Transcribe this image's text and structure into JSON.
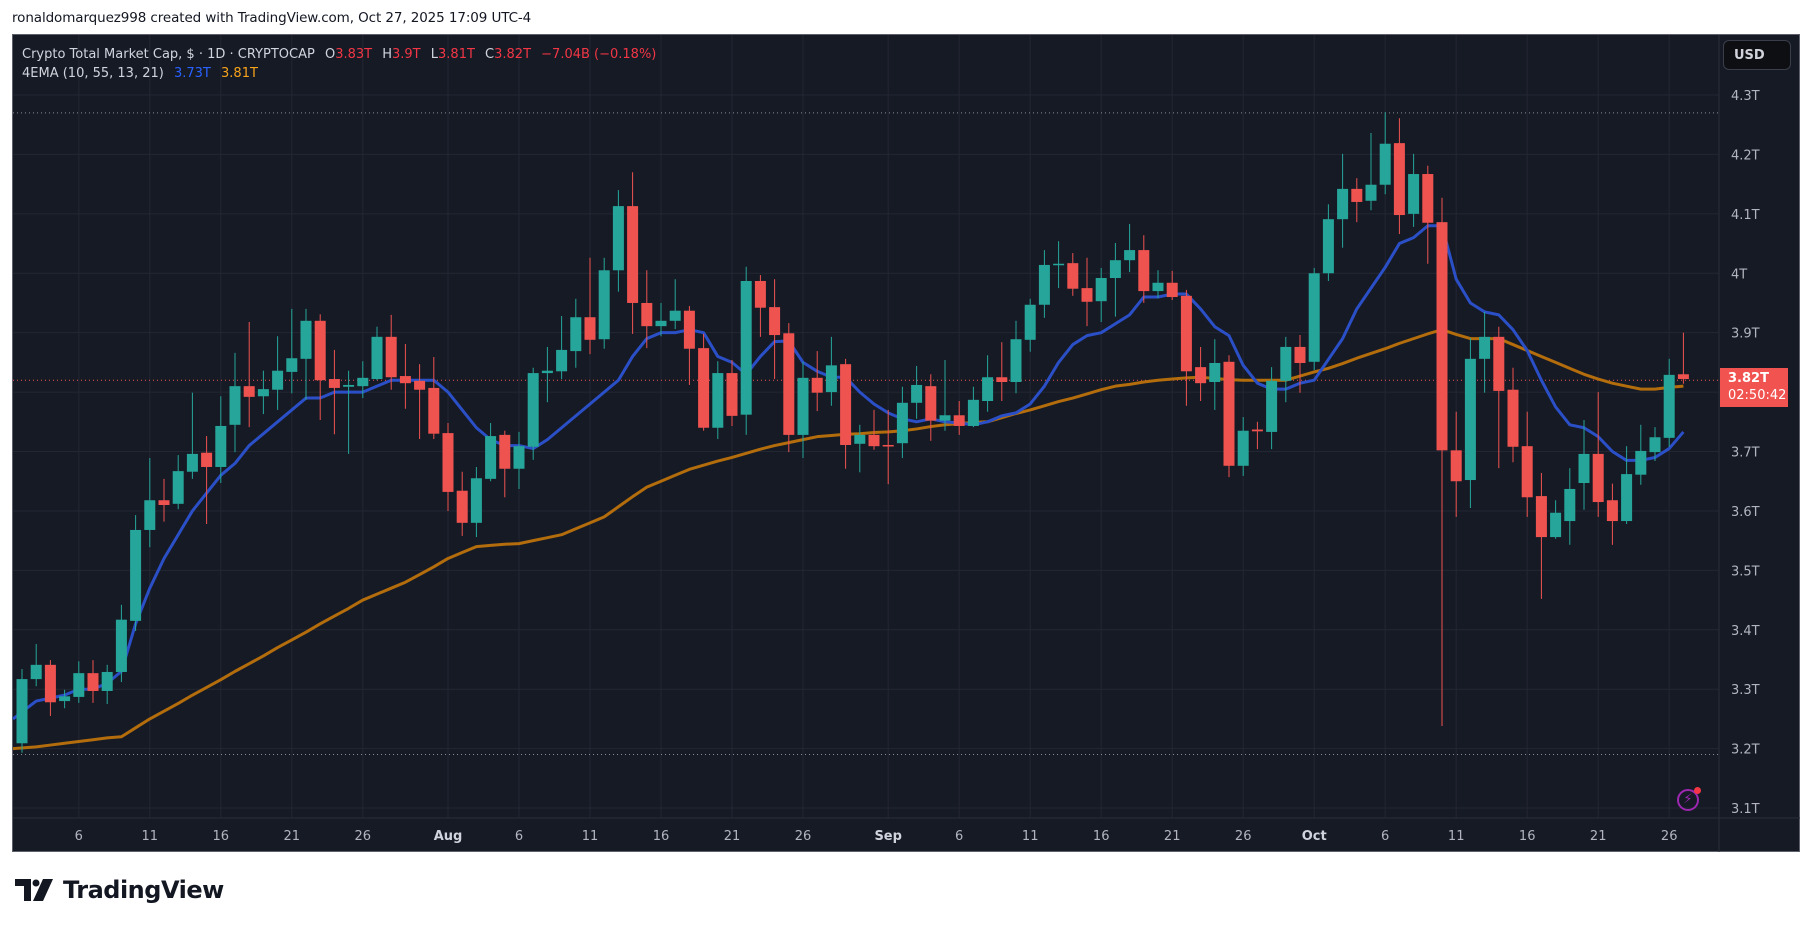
{
  "credit": "ronaldomarquez998 created with TradingView.com, Oct 27, 2025 17:09 UTC-4",
  "legend": {
    "title": "Crypto Total Market Cap, $ · 1D · CRYPTOCAP",
    "o_label": "O",
    "o_value": "3.83T",
    "h_label": "H",
    "h_value": "3.9T",
    "l_label": "L",
    "l_value": "3.81T",
    "c_label": "C",
    "c_value": "3.82T",
    "change": "−7.04B (−0.18%)",
    "indicator": "4EMA (10, 55, 13, 21)",
    "ema_fast_value": "3.73T",
    "ema_slow_value": "3.81T"
  },
  "currency_button": "USD",
  "last_price": {
    "value": "3.82T",
    "countdown": "02:50:42"
  },
  "logo_text": "TradingView",
  "icons": {
    "alert": "lightning-alert-icon",
    "logo": "tradingview-logo-icon"
  },
  "colors": {
    "background": "#161a25",
    "grid": "#232733",
    "up": "#26a69a",
    "down": "#ef5350",
    "ema_fast": "#2a4fc6",
    "ema_slow": "#b36d0c",
    "price_line": "#f05350",
    "axis_text": "#b2b5be"
  },
  "chart_data": {
    "type": "candlestick",
    "title": "Crypto Total Market Cap, $ · 1D · CRYPTOCAP",
    "xlabel": "",
    "ylabel": "USD",
    "ylim": [
      3.08,
      4.36
    ],
    "y_ticks": [
      "4.3T",
      "4.2T",
      "4.1T",
      "4T",
      "3.9T",
      "3.8T",
      "3.7T",
      "3.6T",
      "3.5T",
      "3.4T",
      "3.3T",
      "3.2T",
      "3.1T"
    ],
    "y_tick_values": [
      4.3,
      4.2,
      4.1,
      4.0,
      3.9,
      3.8,
      3.7,
      3.6,
      3.5,
      3.4,
      3.3,
      3.2,
      3.1
    ],
    "x_ticks": [
      {
        "label": "6",
        "day": 4
      },
      {
        "label": "11",
        "day": 9
      },
      {
        "label": "16",
        "day": 14
      },
      {
        "label": "21",
        "day": 19
      },
      {
        "label": "26",
        "day": 24
      },
      {
        "label": "Aug",
        "day": 30,
        "bold": true
      },
      {
        "label": "6",
        "day": 35
      },
      {
        "label": "11",
        "day": 40
      },
      {
        "label": "16",
        "day": 45
      },
      {
        "label": "21",
        "day": 50
      },
      {
        "label": "26",
        "day": 55
      },
      {
        "label": "Sep",
        "day": 61,
        "bold": true
      },
      {
        "label": "6",
        "day": 66
      },
      {
        "label": "11",
        "day": 71
      },
      {
        "label": "16",
        "day": 76
      },
      {
        "label": "21",
        "day": 81
      },
      {
        "label": "26",
        "day": 86
      },
      {
        "label": "Oct",
        "day": 91,
        "bold": true
      },
      {
        "label": "6",
        "day": 96
      },
      {
        "label": "11",
        "day": 101
      },
      {
        "label": "16",
        "day": 106
      },
      {
        "label": "21",
        "day": 111
      },
      {
        "label": "26",
        "day": 116
      }
    ],
    "start_date": "Jul 2",
    "end_date": "Oct 27",
    "hlines": {
      "high_dotted": 4.27,
      "low_dotted": 3.19,
      "last_price": 3.82
    },
    "ohlc": [
      [
        3.209,
        3.334,
        3.193,
        3.317
      ],
      [
        3.317,
        3.376,
        3.305,
        3.341
      ],
      [
        3.341,
        3.349,
        3.255,
        3.278
      ],
      [
        3.28,
        3.299,
        3.268,
        3.288
      ],
      [
        3.287,
        3.347,
        3.277,
        3.327
      ],
      [
        3.327,
        3.349,
        3.277,
        3.297
      ],
      [
        3.297,
        3.341,
        3.275,
        3.329
      ],
      [
        3.329,
        3.442,
        3.312,
        3.417
      ],
      [
        3.415,
        3.593,
        3.398,
        3.568
      ],
      [
        3.568,
        3.689,
        3.539,
        3.618
      ],
      [
        3.618,
        3.654,
        3.582,
        3.61
      ],
      [
        3.612,
        3.694,
        3.603,
        3.667
      ],
      [
        3.666,
        3.799,
        3.654,
        3.696
      ],
      [
        3.698,
        3.726,
        3.578,
        3.674
      ],
      [
        3.674,
        3.793,
        3.647,
        3.743
      ],
      [
        3.745,
        3.866,
        3.699,
        3.81
      ],
      [
        3.81,
        3.918,
        3.741,
        3.792
      ],
      [
        3.793,
        3.836,
        3.763,
        3.805
      ],
      [
        3.804,
        3.894,
        3.77,
        3.836
      ],
      [
        3.834,
        3.94,
        3.798,
        3.857
      ],
      [
        3.856,
        3.94,
        3.787,
        3.92
      ],
      [
        3.92,
        3.931,
        3.753,
        3.82
      ],
      [
        3.822,
        3.871,
        3.729,
        3.807
      ],
      [
        3.809,
        3.836,
        3.696,
        3.812
      ],
      [
        3.81,
        3.852,
        3.79,
        3.824
      ],
      [
        3.822,
        3.91,
        3.82,
        3.893
      ],
      [
        3.893,
        3.93,
        3.804,
        3.825
      ],
      [
        3.827,
        3.881,
        3.772,
        3.815
      ],
      [
        3.819,
        3.847,
        3.721,
        3.804
      ],
      [
        3.807,
        3.859,
        3.721,
        3.73
      ],
      [
        3.731,
        3.748,
        3.6,
        3.632
      ],
      [
        3.634,
        3.666,
        3.558,
        3.58
      ],
      [
        3.58,
        3.674,
        3.556,
        3.655
      ],
      [
        3.654,
        3.748,
        3.65,
        3.726
      ],
      [
        3.728,
        3.735,
        3.623,
        3.671
      ],
      [
        3.671,
        3.733,
        3.637,
        3.709
      ],
      [
        3.708,
        3.841,
        3.686,
        3.832
      ],
      [
        3.832,
        3.876,
        3.783,
        3.836
      ],
      [
        3.835,
        3.928,
        3.822,
        3.871
      ],
      [
        3.869,
        3.957,
        3.841,
        3.926
      ],
      [
        3.926,
        4.026,
        3.864,
        3.888
      ],
      [
        3.889,
        4.026,
        3.873,
        4.005
      ],
      [
        4.005,
        4.14,
        3.969,
        4.113
      ],
      [
        4.113,
        4.17,
        3.898,
        3.95
      ],
      [
        3.95,
        4.005,
        3.874,
        3.911
      ],
      [
        3.911,
        3.95,
        3.894,
        3.92
      ],
      [
        3.92,
        3.99,
        3.906,
        3.937
      ],
      [
        3.937,
        3.945,
        3.812,
        3.873
      ],
      [
        3.874,
        3.898,
        3.735,
        3.74
      ],
      [
        3.74,
        3.852,
        3.721,
        3.832
      ],
      [
        3.832,
        3.854,
        3.743,
        3.76
      ],
      [
        3.762,
        4.011,
        3.728,
        3.987
      ],
      [
        3.987,
        3.997,
        3.893,
        3.942
      ],
      [
        3.943,
        3.99,
        3.822,
        3.896
      ],
      [
        3.899,
        3.916,
        3.699,
        3.728
      ],
      [
        3.728,
        3.851,
        3.689,
        3.824
      ],
      [
        3.824,
        3.869,
        3.768,
        3.799
      ],
      [
        3.8,
        3.893,
        3.777,
        3.845
      ],
      [
        3.847,
        3.856,
        3.671,
        3.711
      ],
      [
        3.713,
        3.745,
        3.665,
        3.728
      ],
      [
        3.728,
        3.77,
        3.703,
        3.709
      ],
      [
        3.711,
        3.77,
        3.645,
        3.71
      ],
      [
        3.714,
        3.809,
        3.689,
        3.782
      ],
      [
        3.782,
        3.844,
        3.755,
        3.812
      ],
      [
        3.81,
        3.83,
        3.718,
        3.752
      ],
      [
        3.752,
        3.854,
        3.735,
        3.761
      ],
      [
        3.761,
        3.785,
        3.728,
        3.743
      ],
      [
        3.743,
        3.809,
        3.741,
        3.787
      ],
      [
        3.785,
        3.862,
        3.767,
        3.825
      ],
      [
        3.825,
        3.884,
        3.785,
        3.817
      ],
      [
        3.817,
        3.92,
        3.798,
        3.889
      ],
      [
        3.888,
        3.957,
        3.868,
        3.947
      ],
      [
        3.947,
        4.039,
        3.925,
        4.014
      ],
      [
        4.014,
        4.054,
        3.975,
        4.016
      ],
      [
        4.017,
        4.034,
        3.962,
        3.974
      ],
      [
        3.975,
        4.026,
        3.911,
        3.952
      ],
      [
        3.953,
        4.009,
        3.918,
        3.992
      ],
      [
        3.992,
        4.051,
        3.927,
        4.022
      ],
      [
        4.022,
        4.083,
        4.002,
        4.039
      ],
      [
        4.039,
        4.064,
        3.95,
        3.97
      ],
      [
        3.97,
        4.005,
        3.958,
        3.984
      ],
      [
        3.984,
        4.004,
        3.955,
        3.96
      ],
      [
        3.962,
        3.972,
        3.777,
        3.835
      ],
      [
        3.842,
        3.876,
        3.785,
        3.815
      ],
      [
        3.817,
        3.889,
        3.77,
        3.849
      ],
      [
        3.851,
        3.862,
        3.657,
        3.676
      ],
      [
        3.676,
        3.758,
        3.659,
        3.735
      ],
      [
        3.737,
        3.75,
        3.704,
        3.734
      ],
      [
        3.733,
        3.842,
        3.704,
        3.819
      ],
      [
        3.819,
        3.893,
        3.783,
        3.876
      ],
      [
        3.876,
        3.896,
        3.799,
        3.849
      ],
      [
        3.851,
        4.009,
        3.837,
        4.0
      ],
      [
        4.0,
        4.116,
        3.987,
        4.091
      ],
      [
        4.091,
        4.201,
        4.043,
        4.142
      ],
      [
        4.142,
        4.16,
        4.086,
        4.12
      ],
      [
        4.122,
        4.236,
        4.106,
        4.149
      ],
      [
        4.149,
        4.271,
        4.133,
        4.218
      ],
      [
        4.219,
        4.261,
        4.066,
        4.098
      ],
      [
        4.1,
        4.201,
        4.078,
        4.167
      ],
      [
        4.167,
        4.181,
        4.016,
        4.085
      ],
      [
        4.086,
        4.127,
        3.238,
        3.702
      ],
      [
        3.702,
        3.767,
        3.59,
        3.65
      ],
      [
        3.652,
        3.891,
        3.605,
        3.856
      ],
      [
        3.856,
        3.935,
        3.799,
        3.893
      ],
      [
        3.893,
        3.91,
        3.672,
        3.802
      ],
      [
        3.804,
        3.841,
        3.682,
        3.708
      ],
      [
        3.709,
        3.767,
        3.59,
        3.623
      ],
      [
        3.625,
        3.664,
        3.452,
        3.556
      ],
      [
        3.556,
        3.618,
        3.553,
        3.597
      ],
      [
        3.583,
        3.672,
        3.543,
        3.637
      ],
      [
        3.647,
        3.753,
        3.602,
        3.696
      ],
      [
        3.696,
        3.8,
        3.59,
        3.615
      ],
      [
        3.618,
        3.646,
        3.543,
        3.583
      ],
      [
        3.583,
        3.709,
        3.578,
        3.662
      ],
      [
        3.661,
        3.745,
        3.644,
        3.701
      ],
      [
        3.699,
        3.741,
        3.684,
        3.724
      ],
      [
        3.723,
        3.856,
        3.708,
        3.829
      ],
      [
        3.83,
        3.9,
        3.814,
        3.822
      ]
    ],
    "series": [
      {
        "name": "EMA fast (blue)",
        "values": [
          3.25,
          3.28,
          3.285,
          3.29,
          3.3,
          3.3,
          3.31,
          3.33,
          3.41,
          3.47,
          3.52,
          3.56,
          3.6,
          3.63,
          3.66,
          3.68,
          3.71,
          3.73,
          3.75,
          3.77,
          3.79,
          3.79,
          3.8,
          3.8,
          3.8,
          3.81,
          3.82,
          3.82,
          3.82,
          3.82,
          3.8,
          3.77,
          3.74,
          3.72,
          3.71,
          3.71,
          3.705,
          3.72,
          3.74,
          3.76,
          3.78,
          3.8,
          3.82,
          3.86,
          3.89,
          3.9,
          3.9,
          3.905,
          3.9,
          3.86,
          3.85,
          3.83,
          3.86,
          3.885,
          3.886,
          3.85,
          3.835,
          3.825,
          3.825,
          3.8,
          3.78,
          3.765,
          3.755,
          3.75,
          3.755,
          3.75,
          3.748,
          3.745,
          3.75,
          3.76,
          3.765,
          3.78,
          3.81,
          3.85,
          3.88,
          3.895,
          3.9,
          3.915,
          3.93,
          3.96,
          3.96,
          3.965,
          3.965,
          3.94,
          3.91,
          3.895,
          3.845,
          3.815,
          3.805,
          3.805,
          3.815,
          3.82,
          3.855,
          3.89,
          3.94,
          3.975,
          4.01,
          4.05,
          4.06,
          4.08,
          4.08,
          3.99,
          3.95,
          3.935,
          3.93,
          3.905,
          3.87,
          3.82,
          3.775,
          3.745,
          3.74,
          3.725,
          3.7,
          3.685,
          3.685,
          3.69,
          3.705,
          3.733
        ]
      },
      {
        "name": "EMA slow (orange)",
        "values": [
          3.2,
          3.203,
          3.206,
          3.209,
          3.212,
          3.215,
          3.218,
          3.22,
          3.235,
          3.25,
          3.263,
          3.276,
          3.29,
          3.303,
          3.316,
          3.33,
          3.343,
          3.356,
          3.37,
          3.383,
          3.396,
          3.41,
          3.423,
          3.436,
          3.45,
          3.46,
          3.47,
          3.48,
          3.493,
          3.506,
          3.52,
          3.53,
          3.54,
          3.542,
          3.544,
          3.545,
          3.55,
          3.555,
          3.56,
          3.57,
          3.58,
          3.59,
          3.607,
          3.624,
          3.64,
          3.65,
          3.66,
          3.67,
          3.677,
          3.684,
          3.69,
          3.697,
          3.704,
          3.71,
          3.715,
          3.72,
          3.725,
          3.727,
          3.729,
          3.73,
          3.732,
          3.733,
          3.735,
          3.738,
          3.742,
          3.745,
          3.747,
          3.749,
          3.75,
          3.757,
          3.764,
          3.77,
          3.777,
          3.784,
          3.79,
          3.797,
          3.804,
          3.81,
          3.813,
          3.817,
          3.82,
          3.822,
          3.824,
          3.825,
          3.823,
          3.821,
          3.82,
          3.82,
          3.82,
          3.82,
          3.827,
          3.834,
          3.84,
          3.848,
          3.857,
          3.865,
          3.873,
          3.882,
          3.89,
          3.898,
          3.905,
          3.897,
          3.89,
          3.89,
          3.89,
          3.88,
          3.87,
          3.86,
          3.85,
          3.84,
          3.83,
          3.822,
          3.815,
          3.81,
          3.805,
          3.805,
          3.808,
          3.81
        ]
      }
    ]
  }
}
